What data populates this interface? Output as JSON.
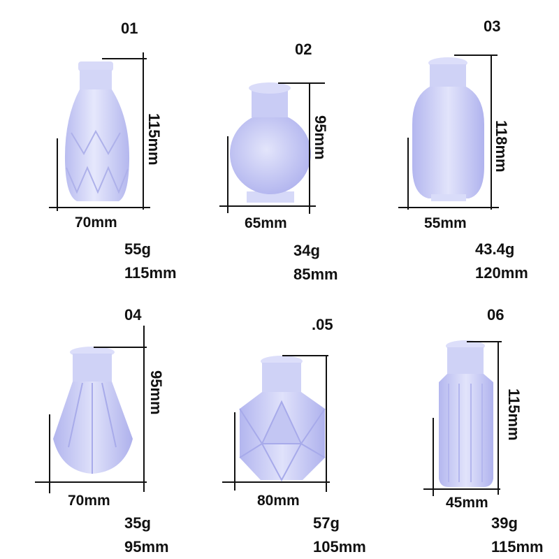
{
  "colors": {
    "background": "#ffffff",
    "text": "#111111",
    "mold_main": "#c9cbf4",
    "mold_light": "#e3e5fb",
    "mold_dark": "#a9acea"
  },
  "molds": [
    {
      "number": "01",
      "width": "70mm",
      "height": "115mm",
      "weight": "55g",
      "size": "115mm",
      "shape": "faceted-teardrop-bottle"
    },
    {
      "number": "02",
      "width": "65mm",
      "height": "95mm",
      "weight": "34g",
      "size": "85mm",
      "shape": "round-bulb-bottle"
    },
    {
      "number": "03",
      "width": "55mm",
      "height": "118mm",
      "weight": "43.4g",
      "size": "120mm",
      "shape": "oval-bottle"
    },
    {
      "number": "04",
      "width": "70mm",
      "height": "95mm",
      "weight": "35g",
      "size": "95mm",
      "shape": "faceted-cone-bottle"
    },
    {
      "number": ".05",
      "width": "80mm",
      "height": "",
      "weight": "57g",
      "size": "105mm",
      "shape": "geometric-prism-bottle"
    },
    {
      "number": "06",
      "width": "45mm",
      "height": "115mm",
      "weight": "39g",
      "size": "115mm",
      "shape": "tall-ribbed-bottle"
    }
  ]
}
